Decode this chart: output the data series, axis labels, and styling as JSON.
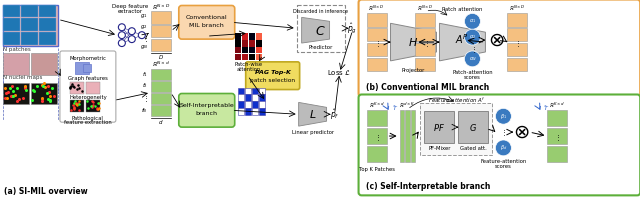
{
  "background_color": "#ffffff",
  "orange_border": "#E8A040",
  "green_border": "#5DAF3A",
  "light_orange": "#F5C080",
  "light_green": "#98CC70",
  "blue_circle": "#3A7AC0",
  "projector_color": "#BBBBBB",
  "yellow_fill": "#F0DC60",
  "pink_morph": "#C0C8F0",
  "panel_a_label": "(a) SI-MIL overview",
  "panel_b_label": "(b) Conventional MIL branch",
  "panel_c_label": "(c) Self-Interpretable branch"
}
